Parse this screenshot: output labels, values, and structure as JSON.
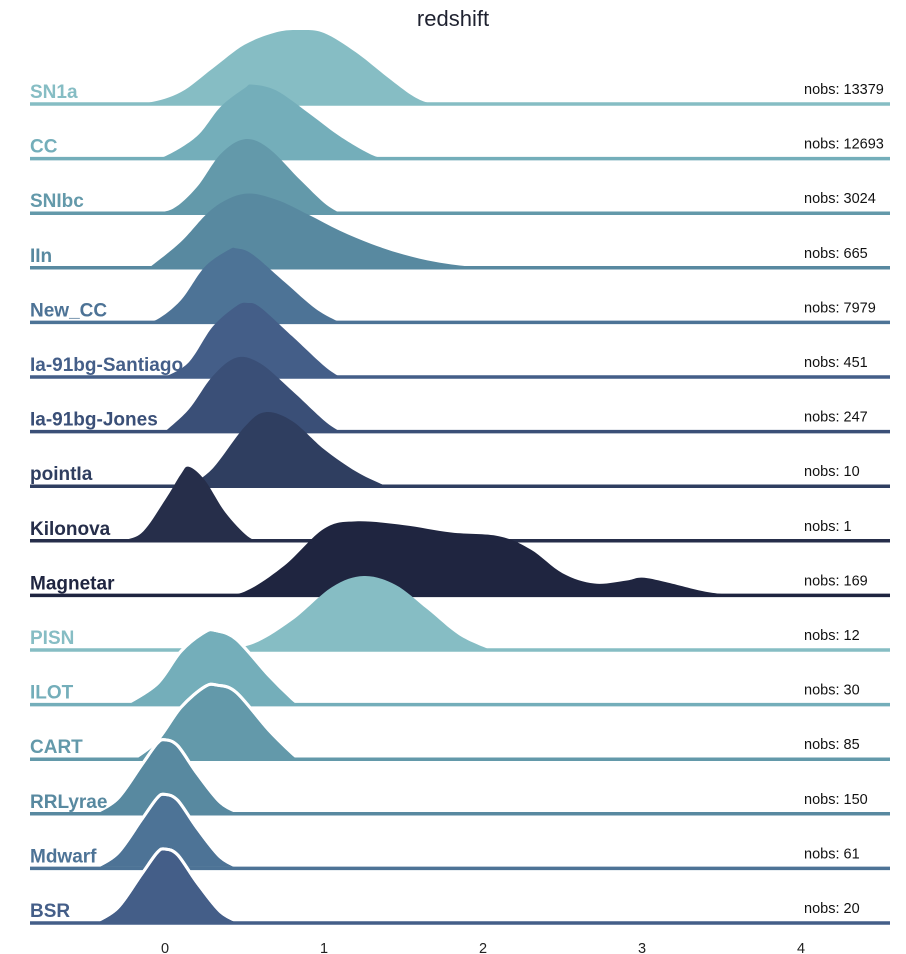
{
  "chart_data": {
    "type": "area",
    "title": "redshift",
    "xlabel": "",
    "ylabel": "",
    "xlim": [
      -0.85,
      4.55
    ],
    "xticks": [
      0,
      1,
      2,
      3,
      4
    ],
    "xtick_labels": [
      "0",
      "1",
      "2",
      "3",
      "4"
    ],
    "grid": false,
    "nobs_prefix": "nobs: ",
    "series": [
      {
        "name": "SN1a",
        "nobs": 13379,
        "color": "#86bdc4",
        "outline": false,
        "density": [
          [
            -0.3,
            0
          ],
          [
            -0.1,
            0.02
          ],
          [
            0.1,
            0.16
          ],
          [
            0.3,
            0.48
          ],
          [
            0.5,
            0.8
          ],
          [
            0.7,
            0.97
          ],
          [
            0.85,
            1.0
          ],
          [
            1.0,
            0.96
          ],
          [
            1.2,
            0.7
          ],
          [
            1.4,
            0.36
          ],
          [
            1.55,
            0.12
          ],
          [
            1.65,
            0.02
          ],
          [
            1.75,
            0
          ]
        ]
      },
      {
        "name": "CC",
        "nobs": 12693,
        "color": "#74aeba",
        "outline": false,
        "density": [
          [
            -0.1,
            0
          ],
          [
            0.0,
            0.03
          ],
          [
            0.2,
            0.3
          ],
          [
            0.35,
            0.7
          ],
          [
            0.5,
            0.95
          ],
          [
            0.55,
            1.0
          ],
          [
            0.7,
            0.92
          ],
          [
            0.9,
            0.62
          ],
          [
            1.1,
            0.3
          ],
          [
            1.3,
            0.05
          ],
          [
            1.4,
            0
          ]
        ]
      },
      {
        "name": "SNIbc",
        "nobs": 3024,
        "color": "#6399aa",
        "outline": false,
        "density": [
          [
            -0.1,
            0
          ],
          [
            0.05,
            0.06
          ],
          [
            0.2,
            0.35
          ],
          [
            0.35,
            0.8
          ],
          [
            0.5,
            1.0
          ],
          [
            0.65,
            0.88
          ],
          [
            0.85,
            0.45
          ],
          [
            1.0,
            0.14
          ],
          [
            1.1,
            0
          ]
        ]
      },
      {
        "name": "IIn",
        "nobs": 665,
        "color": "#5889a0",
        "outline": false,
        "density": [
          [
            -0.1,
            0
          ],
          [
            0.1,
            0.35
          ],
          [
            0.3,
            0.8
          ],
          [
            0.5,
            1.0
          ],
          [
            0.7,
            0.92
          ],
          [
            0.9,
            0.72
          ],
          [
            1.1,
            0.5
          ],
          [
            1.3,
            0.32
          ],
          [
            1.5,
            0.18
          ],
          [
            1.7,
            0.08
          ],
          [
            1.9,
            0.02
          ],
          [
            2.05,
            0
          ]
        ]
      },
      {
        "name": "New_CC",
        "nobs": 7979,
        "color": "#4d7396",
        "outline": false,
        "density": [
          [
            -0.15,
            0
          ],
          [
            -0.05,
            0.04
          ],
          [
            0.1,
            0.3
          ],
          [
            0.25,
            0.75
          ],
          [
            0.4,
            0.98
          ],
          [
            0.45,
            1.0
          ],
          [
            0.55,
            0.92
          ],
          [
            0.75,
            0.55
          ],
          [
            0.95,
            0.18
          ],
          [
            1.1,
            0
          ]
        ]
      },
      {
        "name": "Ia-91bg-Santiago",
        "nobs": 451,
        "color": "#445e88",
        "outline": false,
        "density": [
          [
            0.0,
            0
          ],
          [
            0.15,
            0.2
          ],
          [
            0.3,
            0.68
          ],
          [
            0.45,
            0.96
          ],
          [
            0.52,
            1.0
          ],
          [
            0.6,
            0.94
          ],
          [
            0.8,
            0.55
          ],
          [
            1.0,
            0.15
          ],
          [
            1.1,
            0
          ]
        ]
      },
      {
        "name": "Ia-91bg-Jones",
        "nobs": 247,
        "color": "#3a4f77",
        "outline": false,
        "density": [
          [
            0.0,
            0
          ],
          [
            0.15,
            0.3
          ],
          [
            0.3,
            0.75
          ],
          [
            0.45,
            1.0
          ],
          [
            0.6,
            0.92
          ],
          [
            0.8,
            0.55
          ],
          [
            1.0,
            0.15
          ],
          [
            1.1,
            0
          ]
        ]
      },
      {
        "name": "pointIa",
        "nobs": 10,
        "color": "#2f3e60",
        "outline": false,
        "density": [
          [
            0.15,
            0
          ],
          [
            0.3,
            0.24
          ],
          [
            0.5,
            0.8
          ],
          [
            0.63,
            1.0
          ],
          [
            0.8,
            0.88
          ],
          [
            1.0,
            0.5
          ],
          [
            1.2,
            0.2
          ],
          [
            1.35,
            0.04
          ],
          [
            1.4,
            0
          ]
        ]
      },
      {
        "name": "Kilonova",
        "nobs": 1,
        "color": "#262e4a",
        "outline": false,
        "density": [
          [
            -0.3,
            0
          ],
          [
            -0.15,
            0.1
          ],
          [
            0.0,
            0.55
          ],
          [
            0.1,
            0.9
          ],
          [
            0.15,
            1.0
          ],
          [
            0.25,
            0.82
          ],
          [
            0.38,
            0.38
          ],
          [
            0.52,
            0.06
          ],
          [
            0.6,
            0
          ]
        ]
      },
      {
        "name": "Magnetar",
        "nobs": 169,
        "color": "#1f2540",
        "outline": false,
        "density": [
          [
            0.3,
            0
          ],
          [
            0.5,
            0.05
          ],
          [
            0.75,
            0.4
          ],
          [
            1.0,
            0.9
          ],
          [
            1.2,
            1.0
          ],
          [
            1.5,
            0.95
          ],
          [
            1.8,
            0.85
          ],
          [
            2.1,
            0.8
          ],
          [
            2.3,
            0.62
          ],
          [
            2.5,
            0.3
          ],
          [
            2.7,
            0.16
          ],
          [
            2.9,
            0.2
          ],
          [
            3.0,
            0.24
          ],
          [
            3.15,
            0.18
          ],
          [
            3.4,
            0.05
          ],
          [
            3.6,
            0
          ]
        ]
      },
      {
        "name": "PISN",
        "nobs": 12,
        "color": "#86bdc4",
        "outline": false,
        "density": [
          [
            0.3,
            0
          ],
          [
            0.55,
            0.08
          ],
          [
            0.8,
            0.4
          ],
          [
            1.05,
            0.85
          ],
          [
            1.25,
            1.0
          ],
          [
            1.45,
            0.88
          ],
          [
            1.65,
            0.55
          ],
          [
            1.85,
            0.2
          ],
          [
            2.05,
            0
          ]
        ]
      },
      {
        "name": "ILOT",
        "nobs": 30,
        "color": "#74aeba",
        "outline": true,
        "density": [
          [
            -0.25,
            0
          ],
          [
            -0.05,
            0.28
          ],
          [
            0.1,
            0.72
          ],
          [
            0.25,
            0.98
          ],
          [
            0.32,
            1.0
          ],
          [
            0.45,
            0.88
          ],
          [
            0.65,
            0.4
          ],
          [
            0.8,
            0.08
          ],
          [
            0.85,
            0
          ]
        ]
      },
      {
        "name": "CART",
        "nobs": 85,
        "color": "#6399aa",
        "outline": true,
        "density": [
          [
            -0.2,
            0
          ],
          [
            -0.05,
            0.25
          ],
          [
            0.1,
            0.7
          ],
          [
            0.25,
            0.98
          ],
          [
            0.33,
            1.0
          ],
          [
            0.45,
            0.9
          ],
          [
            0.65,
            0.4
          ],
          [
            0.8,
            0.08
          ],
          [
            0.85,
            0
          ]
        ]
      },
      {
        "name": "RRLyrae",
        "nobs": 150,
        "color": "#5889a0",
        "outline": true,
        "density": [
          [
            -0.45,
            0
          ],
          [
            -0.3,
            0.2
          ],
          [
            -0.15,
            0.65
          ],
          [
            -0.05,
            0.95
          ],
          [
            0.0,
            1.0
          ],
          [
            0.08,
            0.92
          ],
          [
            0.2,
            0.55
          ],
          [
            0.35,
            0.15
          ],
          [
            0.48,
            0
          ]
        ]
      },
      {
        "name": "Mdwarf",
        "nobs": 61,
        "color": "#4d7396",
        "outline": true,
        "density": [
          [
            -0.45,
            0
          ],
          [
            -0.3,
            0.2
          ],
          [
            -0.15,
            0.65
          ],
          [
            -0.05,
            0.95
          ],
          [
            0.0,
            1.0
          ],
          [
            0.08,
            0.92
          ],
          [
            0.2,
            0.55
          ],
          [
            0.35,
            0.15
          ],
          [
            0.48,
            0
          ]
        ]
      },
      {
        "name": "BSR",
        "nobs": 20,
        "color": "#445e88",
        "outline": true,
        "density": [
          [
            -0.45,
            0
          ],
          [
            -0.3,
            0.2
          ],
          [
            -0.15,
            0.65
          ],
          [
            -0.05,
            0.95
          ],
          [
            0.0,
            1.0
          ],
          [
            0.08,
            0.92
          ],
          [
            0.2,
            0.55
          ],
          [
            0.35,
            0.15
          ],
          [
            0.48,
            0
          ]
        ]
      }
    ]
  }
}
